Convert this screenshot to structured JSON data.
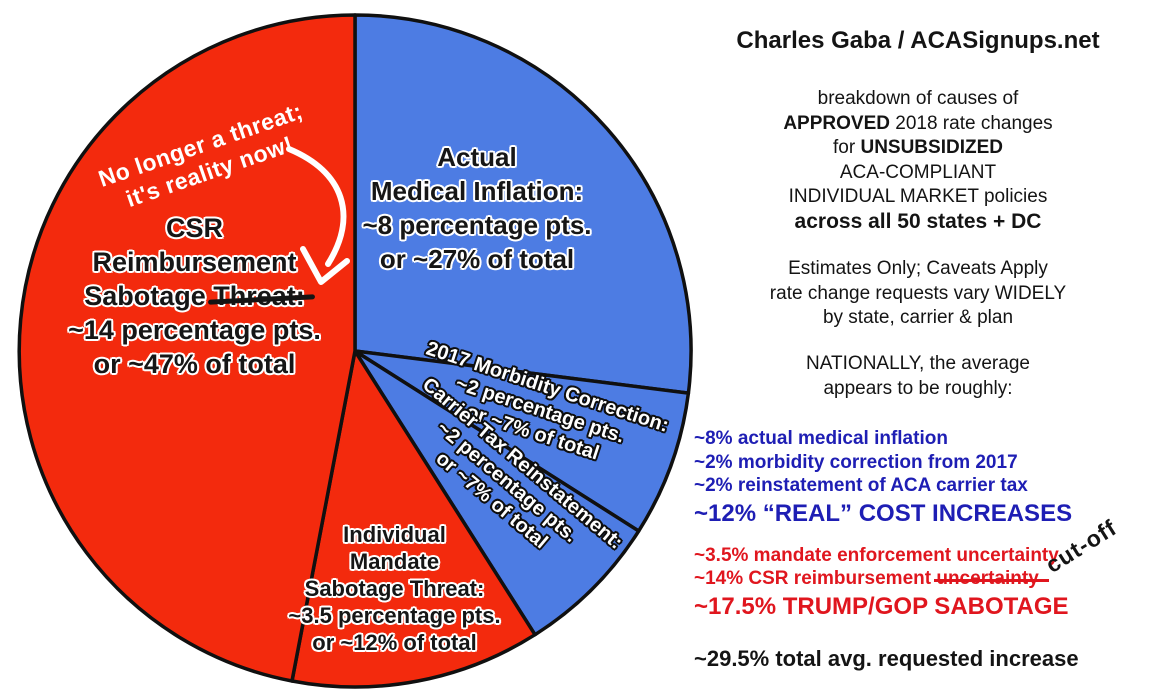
{
  "chart_data": {
    "type": "pie",
    "title": "breakdown of causes of APPROVED 2018 rate changes for UNSUBSIDIZED ACA-COMPLIANT INDIVIDUAL MARKET policies across all 50 states + DC",
    "direction": "clockwise",
    "start_angle_deg": 0,
    "slices": [
      {
        "id": "medical-inflation",
        "label": "Actual Medical Inflation",
        "percentage_points": 8,
        "share_pct": 27,
        "color": "#4d7ce3"
      },
      {
        "id": "morbidity",
        "label": "2017 Morbidity Correction",
        "percentage_points": 2,
        "share_pct": 7,
        "color": "#4d7ce3"
      },
      {
        "id": "carrier-tax",
        "label": "Carrier Tax Reinstatement",
        "percentage_points": 2,
        "share_pct": 7,
        "color": "#4d7ce3"
      },
      {
        "id": "mandate-sabotage",
        "label": "Individual Mandate Sabotage Threat",
        "percentage_points": 3.5,
        "share_pct": 12,
        "color": "#f32a0d"
      },
      {
        "id": "csr-sabotage",
        "label": "CSR Reimbursement Sabotage Threat",
        "percentage_points": 14,
        "share_pct": 47,
        "color": "#f32a0d"
      }
    ],
    "annotations": [
      "No longer a threat; it's reality now!",
      "cut-off"
    ],
    "totals": {
      "real_cost_increase_pct": 12,
      "sabotage_pct": 17.5,
      "overall_avg_increase_pct": 29.5
    }
  },
  "pie_labels": {
    "medical": {
      "l1": "Actual",
      "l2": "Medical Inflation:",
      "l3": "~8 percentage pts.",
      "l4": "or ~27% of total"
    },
    "csr": {
      "l1": "CSR",
      "l2": "Reimbursement",
      "l3_pre": "Sabotage ",
      "l3_struck": "Threat:",
      "l4": "~14 percentage pts.",
      "l5": "or ~47% of total"
    },
    "morbidity": {
      "l1": "2017 Morbidity Correction:",
      "l2": "~2 percentage pts.",
      "l3": "or ~7% of total"
    },
    "carrier": {
      "l1": "Carrier Tax Reinstatement:",
      "l2": "~2 percentage pts.",
      "l3": "or ~7% of total"
    },
    "mandate": {
      "l1": "Individual",
      "l2": "Mandate",
      "l3": "Sabotage Threat:",
      "l4": "~3.5 percentage pts.",
      "l5": "or ~12% of total"
    },
    "handnote": {
      "l1": "No longer a threat;",
      "l2": "it's reality now!"
    }
  },
  "panel": {
    "title": "Charles Gaba / ACASignups.net",
    "intro": {
      "l1": "breakdown of causes of",
      "l2_bold": "APPROVED",
      "l2_rest": " 2018 rate changes",
      "l3_pre": "for ",
      "l3_bold": "UNSUBSIDIZED",
      "l4": "ACA-COMPLIANT",
      "l5": "INDIVIDUAL MARKET policies",
      "l6": "across all 50 states + DC"
    },
    "caveats": {
      "l1": "Estimates Only; Caveats Apply",
      "l2": "rate change requests vary WIDELY",
      "l3": "by state, carrier & plan"
    },
    "nationally": {
      "l1": "NATIONALLY, the average",
      "l2": "appears to be roughly:"
    },
    "blue_list": {
      "color": "#1e1eb4",
      "items": [
        "~8% actual medical inflation",
        "~2% morbidity correction from 2017",
        "~2% reinstatement of ACA carrier tax"
      ],
      "total": "~12% “REAL” COST INCREASES"
    },
    "red_list": {
      "color": "#e0161e",
      "item1": "~3.5% mandate enforcement uncertainty",
      "item2_pre": "~14% CSR reimbursement ",
      "item2_struck": "uncertainty",
      "total": "~17.5% TRUMP/GOP SABOTAGE"
    },
    "cutoff_note": "cut-off",
    "grand_total": "~29.5% total avg. requested increase"
  }
}
